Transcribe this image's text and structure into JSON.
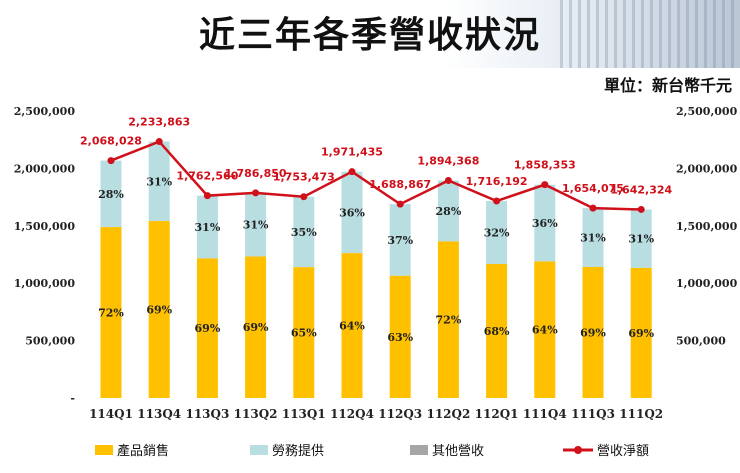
{
  "title": "近三年各季營收狀況",
  "unit_label": "單位：新台幣千元",
  "colors": {
    "product": "#FFC000",
    "service": "#B8DEE2",
    "other": "#A6A6A6",
    "total_line": "#D0101A"
  },
  "chart_data": {
    "type": "bar",
    "stacked": true,
    "title": "近三年各季營收狀況",
    "categories": [
      "114Q1",
      "113Q4",
      "113Q3",
      "113Q2",
      "113Q1",
      "112Q4",
      "112Q3",
      "112Q2",
      "112Q1",
      "111Q4",
      "111Q3",
      "111Q2"
    ],
    "series": [
      {
        "name": "產品銷售",
        "percent_labels": [
          "72%",
          "69%",
          "69%",
          "69%",
          "65%",
          "64%",
          "63%",
          "72%",
          "68%",
          "64%",
          "69%",
          "69%"
        ]
      },
      {
        "name": "勞務提供",
        "percent_labels": [
          "28%",
          "31%",
          "31%",
          "31%",
          "35%",
          "36%",
          "37%",
          "28%",
          "32%",
          "36%",
          "31%",
          "31%"
        ]
      },
      {
        "name": "其他營收",
        "percent_labels": []
      }
    ],
    "product_share": [
      0.72,
      0.69,
      0.69,
      0.69,
      0.65,
      0.64,
      0.63,
      0.72,
      0.68,
      0.64,
      0.69,
      0.69
    ],
    "line": {
      "name": "營收淨額",
      "values": [
        2068028,
        2233863,
        1762560,
        1786850,
        1753473,
        1971435,
        1688867,
        1894368,
        1716192,
        1858353,
        1654075,
        1642324
      ],
      "labels": [
        "2,068,028",
        "2,233,863",
        "1,762,560",
        "1,786,850",
        "1,753,473",
        "1,971,435",
        "1,688,867",
        "1,894,368",
        "1,716,192",
        "1,858,353",
        "1,654,075",
        "1,642,324"
      ]
    },
    "ylim": [
      0,
      2500000
    ],
    "yticks": [
      2500000,
      2000000,
      1500000,
      1000000,
      500000,
      0
    ],
    "ytick_labels": [
      "2,500,000",
      "2,000,000",
      "1,500,000",
      "1,000,000",
      "500,000",
      "-"
    ],
    "legend_position": "bottom"
  }
}
